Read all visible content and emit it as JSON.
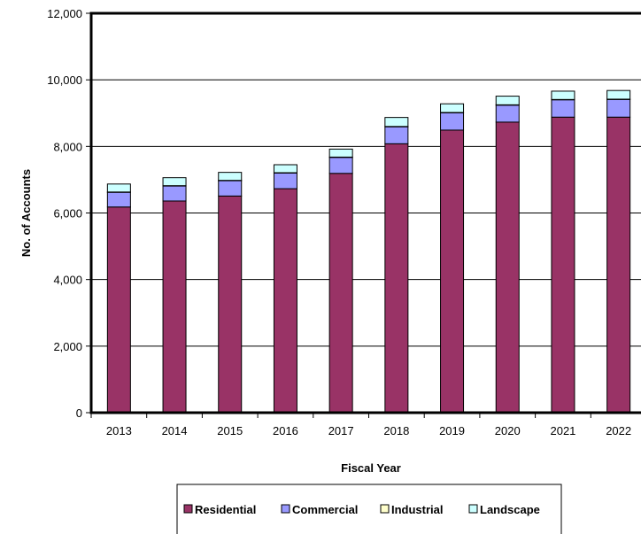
{
  "chart_data": {
    "type": "bar",
    "stacked": true,
    "xlabel": "Fiscal Year",
    "ylabel": "No. of Accounts",
    "ylim": [
      0,
      12000
    ],
    "yticks": [
      0,
      2000,
      4000,
      6000,
      8000,
      10000,
      12000
    ],
    "ytick_labels": [
      "0",
      "2,000",
      "4,000",
      "6,000",
      "8,000",
      "10,000",
      "12,000"
    ],
    "grid": "horizontal",
    "legend_position": "bottom",
    "categories": [
      "2013",
      "2014",
      "2015",
      "2016",
      "2017",
      "2018",
      "2019",
      "2020",
      "2021",
      "2022"
    ],
    "series": [
      {
        "name": "Residential",
        "color": "#993366",
        "values": [
          6180,
          6360,
          6510,
          6730,
          7190,
          8080,
          8490,
          8730,
          8880,
          8880
        ]
      },
      {
        "name": "Commercial",
        "color": "#9999ff",
        "values": [
          440,
          450,
          460,
          470,
          480,
          510,
          520,
          510,
          520,
          530
        ]
      },
      {
        "name": "Industrial",
        "color": "#ffffcc",
        "values": [
          10,
          10,
          10,
          10,
          10,
          10,
          10,
          10,
          10,
          10
        ]
      },
      {
        "name": "Landscape",
        "color": "#ccffff",
        "values": [
          240,
          240,
          240,
          240,
          240,
          270,
          260,
          260,
          250,
          260
        ]
      }
    ]
  }
}
